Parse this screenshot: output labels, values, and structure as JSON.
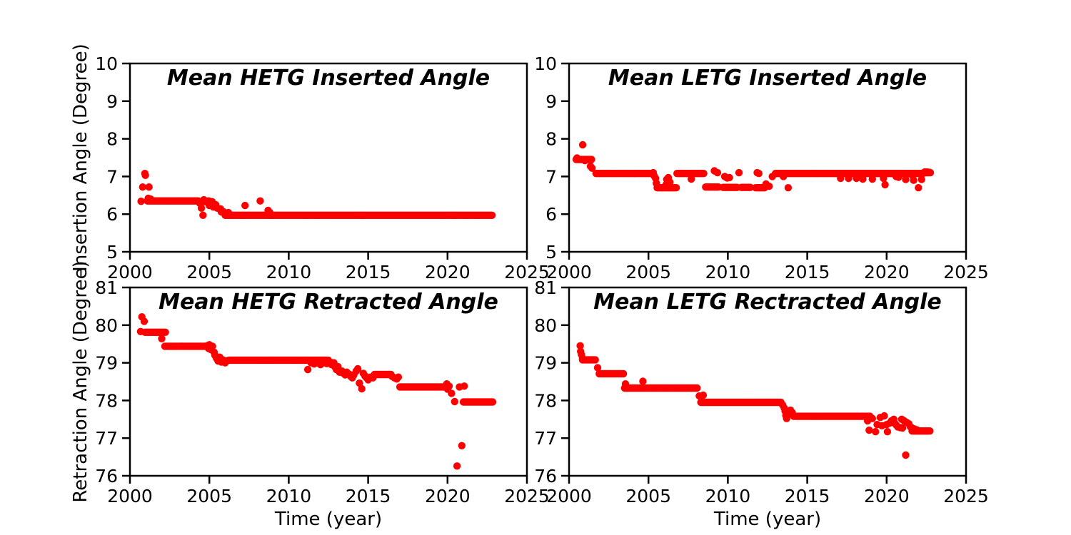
{
  "figure": {
    "background": "#ffffff",
    "axis_color": "#000000",
    "tick_label_fontsize": 25,
    "grid": false,
    "legend": null
  },
  "chart_data": [
    {
      "id": "hetg-inserted",
      "type": "scatter",
      "title": "Mean HETG Inserted Angle",
      "xlabel": "",
      "ylabel": "Insertion Angle (Degree)",
      "xlim": [
        2000,
        2025
      ],
      "ylim": [
        5,
        10
      ],
      "xticks": [
        2000,
        2005,
        2010,
        2015,
        2020,
        2025
      ],
      "yticks": [
        5,
        6,
        7,
        8,
        9,
        10
      ],
      "marker_color": "#ff0000",
      "runs": [
        [
          2001.1,
          2004.35,
          6.35
        ],
        [
          2004.7,
          2005.2,
          6.33
        ],
        [
          2006.0,
          2022.85,
          5.97
        ]
      ],
      "points": [
        [
          2000.7,
          6.34
        ],
        [
          2000.8,
          6.72
        ],
        [
          2001.2,
          6.72
        ],
        [
          2000.94,
          7.08
        ],
        [
          2000.97,
          7.03
        ],
        [
          2001.15,
          6.42
        ],
        [
          2001.3,
          6.4
        ],
        [
          2004.4,
          6.29
        ],
        [
          2004.5,
          6.16
        ],
        [
          2004.6,
          5.97
        ],
        [
          2004.65,
          6.38
        ],
        [
          2004.95,
          6.35
        ],
        [
          2005.0,
          6.23
        ],
        [
          2005.15,
          6.33
        ],
        [
          2005.25,
          6.19
        ],
        [
          2005.4,
          6.25
        ],
        [
          2005.5,
          6.16
        ],
        [
          2005.7,
          6.14
        ],
        [
          2005.75,
          6.06
        ],
        [
          2005.9,
          6.06
        ],
        [
          2006.0,
          6.02
        ],
        [
          2006.2,
          6.04
        ],
        [
          2007.25,
          6.23
        ],
        [
          2008.2,
          6.35
        ],
        [
          2008.7,
          6.1
        ],
        [
          2008.8,
          6.05
        ]
      ]
    },
    {
      "id": "letg-inserted",
      "type": "scatter",
      "title": "Mean LETG Inserted Angle",
      "xlabel": "",
      "ylabel": "",
      "xlim": [
        2000,
        2025
      ],
      "ylim": [
        5,
        10
      ],
      "xticks": [
        2000,
        2005,
        2010,
        2015,
        2020,
        2025
      ],
      "yticks": [
        5,
        6,
        7,
        8,
        9,
        10
      ],
      "marker_color": "#ff0000",
      "runs": [
        [
          2000.45,
          2001.45,
          7.45
        ],
        [
          2001.7,
          2005.25,
          7.08
        ],
        [
          2005.55,
          2006.75,
          6.7
        ],
        [
          2006.8,
          2008.55,
          7.08
        ],
        [
          2008.6,
          2009.45,
          6.72
        ],
        [
          2009.7,
          2010.65,
          6.71
        ],
        [
          2010.85,
          2011.45,
          6.71
        ],
        [
          2011.75,
          2012.35,
          6.7
        ],
        [
          2013.0,
          2022.3,
          7.08
        ],
        [
          2022.35,
          2022.8,
          7.1
        ]
      ],
      "points": [
        [
          2000.86,
          7.84
        ],
        [
          2000.5,
          7.49
        ],
        [
          2001.0,
          7.42
        ],
        [
          2001.35,
          7.27
        ],
        [
          2001.45,
          7.22
        ],
        [
          2005.3,
          7.1
        ],
        [
          2005.35,
          7.02
        ],
        [
          2005.45,
          6.95
        ],
        [
          2005.5,
          6.82
        ],
        [
          2006.1,
          6.78
        ],
        [
          2006.15,
          6.92
        ],
        [
          2006.25,
          6.97
        ],
        [
          2006.35,
          6.85
        ],
        [
          2007.7,
          6.93
        ],
        [
          2009.15,
          7.15
        ],
        [
          2009.35,
          7.1
        ],
        [
          2009.8,
          7.0
        ],
        [
          2009.95,
          6.96
        ],
        [
          2010.1,
          6.97
        ],
        [
          2010.7,
          7.1
        ],
        [
          2011.85,
          7.1
        ],
        [
          2011.95,
          7.08
        ],
        [
          2012.4,
          6.8
        ],
        [
          2012.6,
          6.74
        ],
        [
          2012.8,
          7.0
        ],
        [
          2013.5,
          7.0
        ],
        [
          2013.8,
          6.7
        ],
        [
          2017.1,
          6.95
        ],
        [
          2017.6,
          6.95
        ],
        [
          2018.1,
          6.95
        ],
        [
          2018.5,
          6.93
        ],
        [
          2019.1,
          6.93
        ],
        [
          2019.8,
          6.95
        ],
        [
          2019.9,
          6.78
        ],
        [
          2020.6,
          7.0
        ],
        [
          2020.75,
          6.98
        ],
        [
          2021.2,
          6.92
        ],
        [
          2021.6,
          7.04
        ],
        [
          2021.7,
          6.9
        ],
        [
          2022.0,
          6.7
        ],
        [
          2022.2,
          6.92
        ],
        [
          2022.4,
          7.12
        ],
        [
          2022.55,
          7.12
        ],
        [
          2022.7,
          7.11
        ]
      ]
    },
    {
      "id": "hetg-retracted",
      "type": "scatter",
      "title": "Mean HETG Retracted Angle",
      "xlabel": "Time (year)",
      "ylabel": "Retraction Angle (Degree)",
      "xlim": [
        2000,
        2025
      ],
      "ylim": [
        76,
        81
      ],
      "xticks": [
        2000,
        2005,
        2010,
        2015,
        2020,
        2025
      ],
      "yticks": [
        76,
        77,
        78,
        79,
        80,
        81
      ],
      "marker_color": "#ff0000",
      "runs": [
        [
          2000.95,
          2002.25,
          79.81
        ],
        [
          2002.2,
          2004.9,
          79.44
        ],
        [
          2006.25,
          2012.5,
          79.07
        ],
        [
          2011.4,
          2012.85,
          79.0
        ],
        [
          2015.4,
          2016.45,
          78.69
        ],
        [
          2017.0,
          2020.05,
          78.36
        ],
        [
          2021.0,
          2022.9,
          77.96
        ]
      ],
      "points": [
        [
          2000.75,
          80.22
        ],
        [
          2000.9,
          80.1
        ],
        [
          2000.67,
          79.83
        ],
        [
          2002.0,
          79.64
        ],
        [
          2004.85,
          79.45
        ],
        [
          2004.95,
          79.38
        ],
        [
          2005.0,
          79.48
        ],
        [
          2005.1,
          79.35
        ],
        [
          2005.2,
          79.44
        ],
        [
          2005.3,
          79.28
        ],
        [
          2005.35,
          79.2
        ],
        [
          2005.45,
          79.12
        ],
        [
          2005.55,
          79.05
        ],
        [
          2005.65,
          79.15
        ],
        [
          2005.75,
          79.02
        ],
        [
          2005.85,
          79.08
        ],
        [
          2006.0,
          79.0
        ],
        [
          2006.15,
          79.06
        ],
        [
          2011.2,
          78.82
        ],
        [
          2011.6,
          78.97
        ],
        [
          2012.0,
          78.95
        ],
        [
          2012.4,
          78.98
        ],
        [
          2012.7,
          78.95
        ],
        [
          2012.9,
          78.9
        ],
        [
          2013.0,
          78.82
        ],
        [
          2013.1,
          78.9
        ],
        [
          2013.2,
          78.75
        ],
        [
          2013.35,
          78.78
        ],
        [
          2013.45,
          78.72
        ],
        [
          2013.55,
          78.68
        ],
        [
          2013.65,
          78.75
        ],
        [
          2013.8,
          78.7
        ],
        [
          2013.9,
          78.64
        ],
        [
          2014.0,
          78.6
        ],
        [
          2014.1,
          78.68
        ],
        [
          2014.25,
          78.78
        ],
        [
          2014.35,
          78.84
        ],
        [
          2014.45,
          78.46
        ],
        [
          2014.6,
          78.31
        ],
        [
          2014.7,
          78.72
        ],
        [
          2014.8,
          78.65
        ],
        [
          2014.9,
          78.6
        ],
        [
          2015.0,
          78.55
        ],
        [
          2015.15,
          78.62
        ],
        [
          2015.3,
          78.6
        ],
        [
          2016.5,
          78.64
        ],
        [
          2016.65,
          78.6
        ],
        [
          2016.8,
          78.57
        ],
        [
          2016.9,
          78.62
        ],
        [
          2019.95,
          78.44
        ],
        [
          2020.0,
          78.3
        ],
        [
          2020.1,
          78.38
        ],
        [
          2020.25,
          78.19
        ],
        [
          2020.45,
          77.97
        ],
        [
          2020.6,
          76.26
        ],
        [
          2020.9,
          76.8
        ],
        [
          2020.75,
          78.36
        ],
        [
          2021.05,
          78.38
        ]
      ]
    },
    {
      "id": "letg-retracted",
      "type": "scatter",
      "title": "Mean LETG Rectracted Angle",
      "xlabel": "Time (year)",
      "ylabel": "",
      "xlim": [
        2000,
        2025
      ],
      "ylim": [
        76,
        81
      ],
      "xticks": [
        2000,
        2005,
        2010,
        2015,
        2020,
        2025
      ],
      "yticks": [
        76,
        77,
        78,
        79,
        80,
        81
      ],
      "marker_color": "#ff0000",
      "runs": [
        [
          2000.85,
          2001.7,
          79.08
        ],
        [
          2001.9,
          2003.45,
          78.71
        ],
        [
          2003.5,
          2008.1,
          78.33
        ],
        [
          2008.3,
          2013.4,
          77.95
        ],
        [
          2014.15,
          2019.0,
          77.58
        ],
        [
          2021.6,
          2022.75,
          77.19
        ]
      ],
      "points": [
        [
          2000.7,
          79.45
        ],
        [
          2000.73,
          79.3
        ],
        [
          2000.78,
          79.22
        ],
        [
          2000.85,
          79.12
        ],
        [
          2001.8,
          78.87
        ],
        [
          2003.55,
          78.44
        ],
        [
          2004.65,
          78.51
        ],
        [
          2008.2,
          78.12
        ],
        [
          2008.45,
          78.14
        ],
        [
          2013.45,
          77.88
        ],
        [
          2013.55,
          77.8
        ],
        [
          2013.6,
          77.72
        ],
        [
          2013.65,
          77.6
        ],
        [
          2013.7,
          77.52
        ],
        [
          2013.85,
          77.63
        ],
        [
          2013.95,
          77.74
        ],
        [
          2014.05,
          77.68
        ],
        [
          2018.8,
          77.46
        ],
        [
          2019.1,
          77.52
        ],
        [
          2018.9,
          77.21
        ],
        [
          2019.3,
          77.17
        ],
        [
          2019.4,
          77.36
        ],
        [
          2019.6,
          77.55
        ],
        [
          2019.7,
          77.33
        ],
        [
          2019.85,
          77.59
        ],
        [
          2020.0,
          77.36
        ],
        [
          2020.05,
          77.17
        ],
        [
          2020.2,
          77.4
        ],
        [
          2020.3,
          77.46
        ],
        [
          2020.45,
          77.5
        ],
        [
          2020.5,
          77.4
        ],
        [
          2020.6,
          77.35
        ],
        [
          2020.7,
          77.3
        ],
        [
          2020.85,
          77.28
        ],
        [
          2021.0,
          77.27
        ],
        [
          2020.95,
          77.5
        ],
        [
          2021.1,
          77.46
        ],
        [
          2021.25,
          77.42
        ],
        [
          2021.4,
          77.38
        ],
        [
          2021.2,
          76.55
        ],
        [
          2021.5,
          77.3
        ],
        [
          2021.6,
          77.27
        ],
        [
          2021.75,
          77.24
        ],
        [
          2021.9,
          77.22
        ]
      ]
    }
  ]
}
